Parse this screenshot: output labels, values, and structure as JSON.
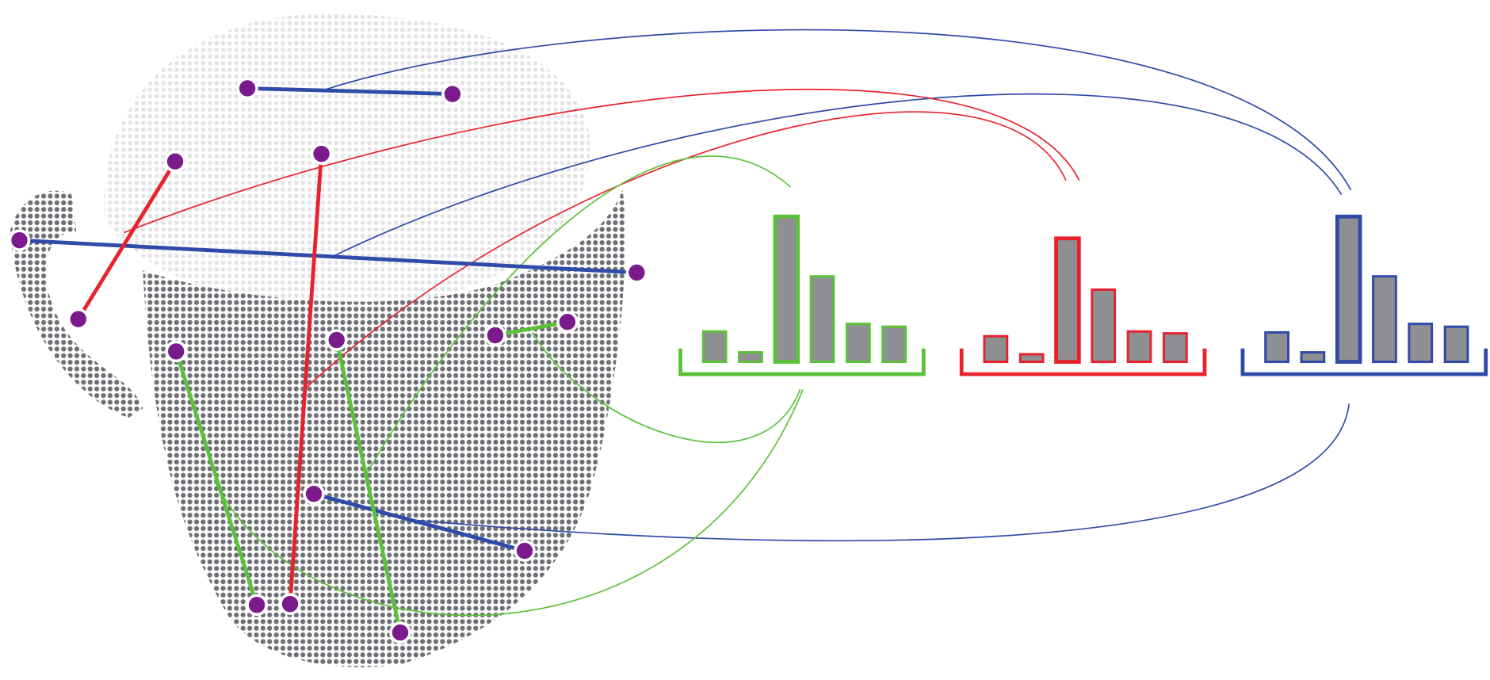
{
  "histograms": [
    {
      "color": "#5cc13a",
      "values": [
        32,
        10,
        153,
        90,
        40,
        37
      ]
    },
    {
      "color": "#e8222d",
      "values": [
        27,
        8,
        130,
        76,
        32,
        30
      ]
    },
    {
      "color": "#2f4aa8",
      "values": [
        31,
        10,
        153,
        90,
        40,
        37
      ]
    }
  ]
}
